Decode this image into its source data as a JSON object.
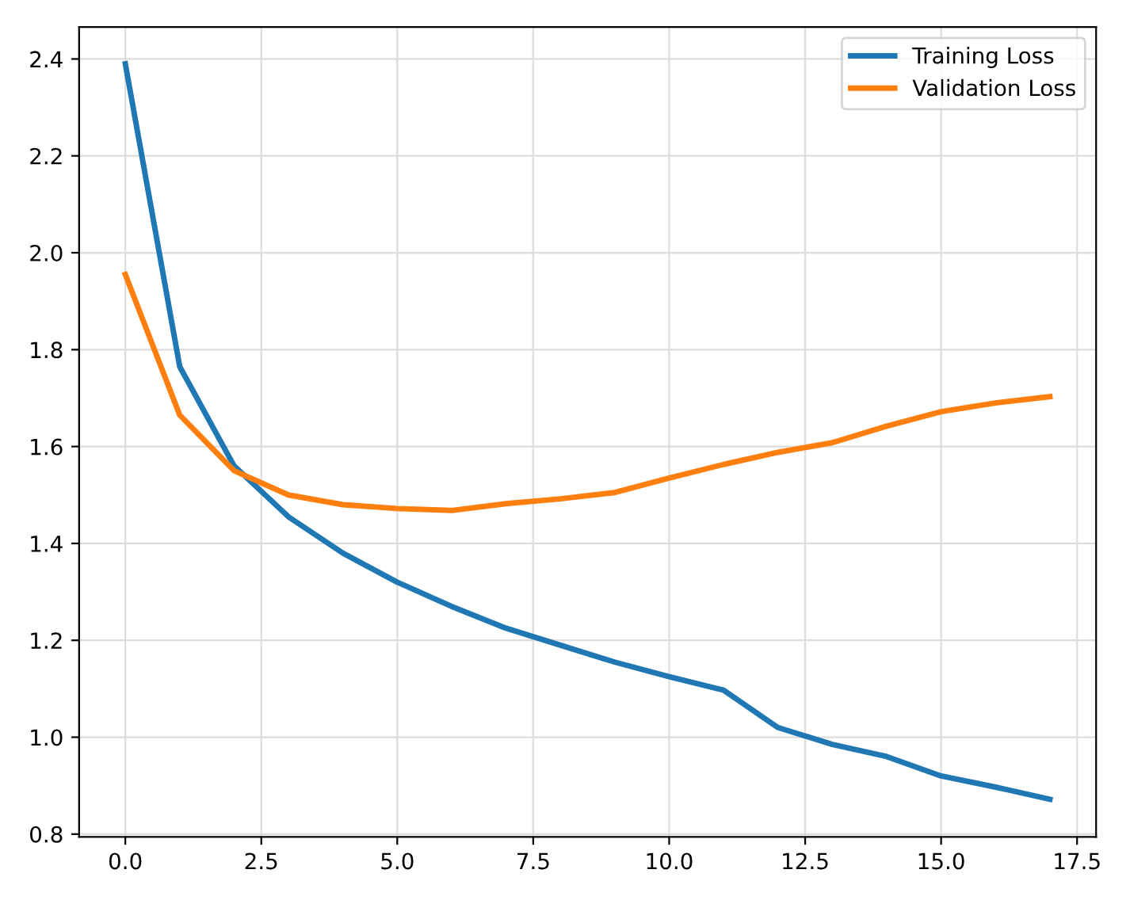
{
  "chart_data": {
    "type": "line",
    "x": [
      0,
      1,
      2,
      3,
      4,
      5,
      6,
      7,
      8,
      9,
      10,
      11,
      12,
      13,
      14,
      15,
      16,
      17
    ],
    "series": [
      {
        "name": "Training Loss",
        "color": "#1f77b4",
        "values": [
          2.39,
          1.765,
          1.56,
          1.455,
          1.38,
          1.32,
          1.27,
          1.225,
          1.19,
          1.155,
          1.125,
          1.097,
          1.02,
          0.985,
          0.96,
          0.92,
          0.897,
          0.872
        ]
      },
      {
        "name": "Validation Loss",
        "color": "#ff7f0e",
        "values": [
          1.955,
          1.665,
          1.55,
          1.5,
          1.48,
          1.472,
          1.468,
          1.482,
          1.492,
          1.505,
          1.535,
          1.563,
          1.588,
          1.608,
          1.642,
          1.672,
          1.69,
          1.703
        ]
      }
    ],
    "xlim": [
      -0.85,
      17.85
    ],
    "ylim": [
      0.794,
      2.466
    ],
    "xticks": [
      {
        "value": 0,
        "label": "0.0"
      },
      {
        "value": 2.5,
        "label": "2.5"
      },
      {
        "value": 5,
        "label": "5.0"
      },
      {
        "value": 7.5,
        "label": "7.5"
      },
      {
        "value": 10,
        "label": "10.0"
      },
      {
        "value": 12.5,
        "label": "12.5"
      },
      {
        "value": 15,
        "label": "15.0"
      },
      {
        "value": 17.5,
        "label": "17.5"
      }
    ],
    "yticks": [
      {
        "value": 0.8,
        "label": "0.8"
      },
      {
        "value": 1.0,
        "label": "1.0"
      },
      {
        "value": 1.2,
        "label": "1.2"
      },
      {
        "value": 1.4,
        "label": "1.4"
      },
      {
        "value": 1.6,
        "label": "1.6"
      },
      {
        "value": 1.8,
        "label": "1.8"
      },
      {
        "value": 2.0,
        "label": "2.0"
      },
      {
        "value": 2.2,
        "label": "2.2"
      },
      {
        "value": 2.4,
        "label": "2.4"
      }
    ],
    "grid": true,
    "legend": "top right"
  }
}
